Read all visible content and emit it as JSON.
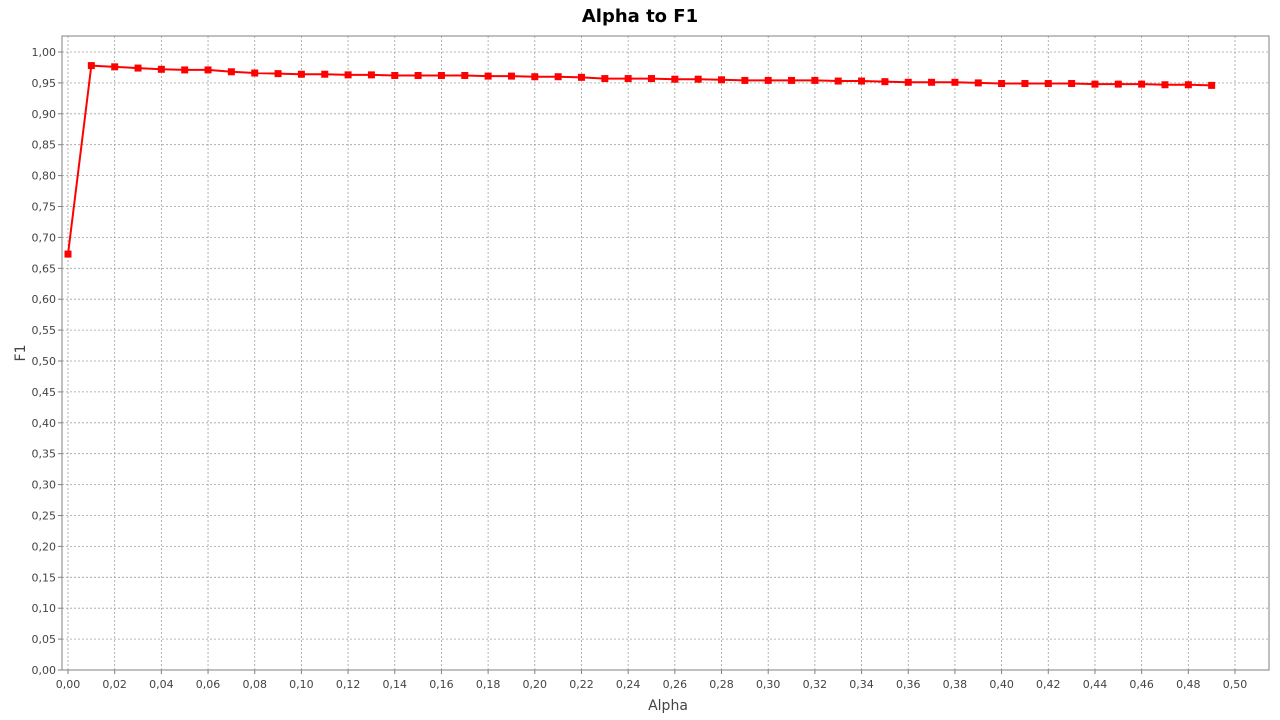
{
  "chart_data": {
    "type": "line",
    "title": "Alpha to F1",
    "xlabel": "Alpha",
    "ylabel": "F1",
    "xlim": [
      0.0,
      0.5
    ],
    "ylim": [
      0.0,
      1.0
    ],
    "x_ticks": [
      "0,00",
      "0,02",
      "0,04",
      "0,06",
      "0,08",
      "0,10",
      "0,12",
      "0,14",
      "0,16",
      "0,18",
      "0,20",
      "0,22",
      "0,24",
      "0,26",
      "0,28",
      "0,30",
      "0,32",
      "0,34",
      "0,36",
      "0,38",
      "0,40",
      "0,42",
      "0,44",
      "0,46",
      "0,48",
      "0,50"
    ],
    "y_ticks": [
      "0,00",
      "0,05",
      "0,10",
      "0,15",
      "0,20",
      "0,25",
      "0,30",
      "0,35",
      "0,40",
      "0,45",
      "0,50",
      "0,55",
      "0,60",
      "0,65",
      "0,70",
      "0,75",
      "0,80",
      "0,85",
      "0,90",
      "0,95",
      "1,00"
    ],
    "grid": true,
    "legend": "none",
    "series_color": "#ff0000",
    "gridline_color": "#a0a0a0",
    "series": [
      {
        "x": [
          0.0,
          0.01,
          0.02,
          0.03,
          0.04,
          0.05,
          0.06,
          0.07,
          0.08,
          0.09,
          0.1,
          0.11,
          0.12,
          0.13,
          0.14,
          0.15,
          0.16,
          0.17,
          0.18,
          0.19,
          0.2,
          0.21,
          0.22,
          0.23,
          0.24,
          0.25,
          0.26,
          0.27,
          0.28,
          0.29,
          0.3,
          0.31,
          0.32,
          0.33,
          0.34,
          0.35,
          0.36,
          0.37,
          0.38,
          0.39,
          0.4,
          0.41,
          0.42,
          0.43,
          0.44,
          0.45,
          0.46,
          0.47,
          0.48,
          0.49
        ],
        "y": [
          0.673,
          0.978,
          0.976,
          0.974,
          0.972,
          0.971,
          0.971,
          0.968,
          0.966,
          0.965,
          0.964,
          0.964,
          0.963,
          0.963,
          0.962,
          0.962,
          0.962,
          0.962,
          0.961,
          0.961,
          0.96,
          0.96,
          0.959,
          0.957,
          0.957,
          0.957,
          0.956,
          0.956,
          0.955,
          0.954,
          0.954,
          0.954,
          0.954,
          0.953,
          0.953,
          0.952,
          0.951,
          0.951,
          0.951,
          0.95,
          0.949,
          0.949,
          0.949,
          0.949,
          0.948,
          0.948,
          0.948,
          0.947,
          0.947,
          0.946
        ]
      }
    ]
  }
}
